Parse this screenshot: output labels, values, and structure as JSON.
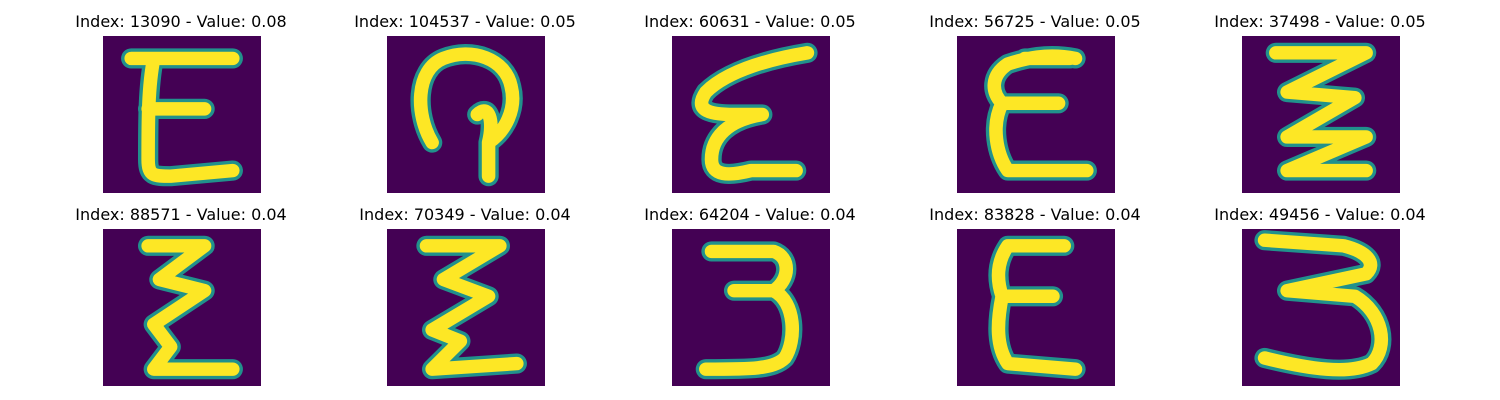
{
  "colors": {
    "background": "#440154",
    "glyph_edge": "#21918c",
    "glyph_fill": "#fde725"
  },
  "panels": [
    {
      "title": "Index: 13090 - Value: 0.08",
      "glyph": "E"
    },
    {
      "title": "Index: 104537 - Value: 0.05",
      "glyph": "loop"
    },
    {
      "title": "Index: 60631 - Value: 0.05",
      "glyph": "slanted-E"
    },
    {
      "title": "Index: 56725 - Value: 0.05",
      "glyph": "E"
    },
    {
      "title": "Index: 37498 - Value: 0.05",
      "glyph": "zigzag"
    },
    {
      "title": "Index: 88571 - Value: 0.04",
      "glyph": "zigzag"
    },
    {
      "title": "Index: 70349 - Value: 0.04",
      "glyph": "zigzag"
    },
    {
      "title": "Index: 64204 - Value: 0.04",
      "glyph": "3"
    },
    {
      "title": "Index: 83828 - Value: 0.04",
      "glyph": "E"
    },
    {
      "title": "Index: 49456 - Value: 0.04",
      "glyph": "3"
    }
  ]
}
